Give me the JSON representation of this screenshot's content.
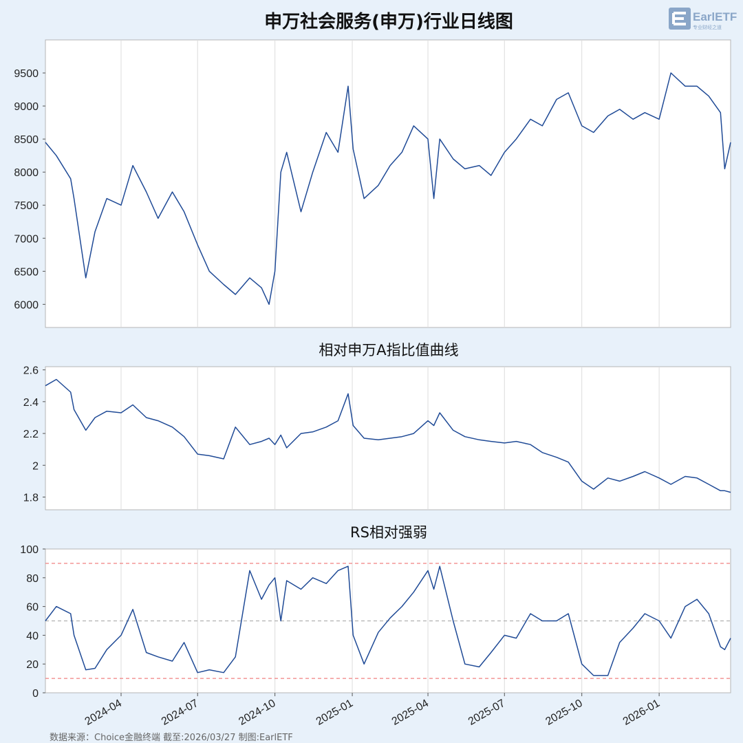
{
  "colors": {
    "background": "#e8f1fa",
    "plot_bg": "#ffffff",
    "line": "#1f4a96",
    "grid": "#dcdcdc",
    "ref_high_low": "#f08080",
    "ref_mid": "#b0b0b0",
    "axis_text": "#222222",
    "footer_text": "#666666"
  },
  "logo": {
    "text": "EarlETF",
    "subtext": "专业财经之道"
  },
  "footer": {
    "source": "数据来源：Choice金融终端 截至:2026/03/27 制图:EarlETF"
  },
  "x_ticks": [
    "2024-04",
    "2024-07",
    "2024-10",
    "2025-01",
    "2025-04",
    "2025-07",
    "2025-10",
    "2026-01"
  ],
  "chart_data": [
    {
      "type": "line",
      "title": "申万社会服务(申万)行业日线图",
      "yticks": [
        6000,
        6500,
        7000,
        7500,
        8000,
        8500,
        9000,
        9500
      ],
      "ylim": [
        5650,
        10000
      ],
      "grid": "vertical",
      "x": [
        "2024-01-02",
        "2024-01-15",
        "2024-02-01",
        "2024-02-05",
        "2024-02-19",
        "2024-03-01",
        "2024-03-15",
        "2024-04-01",
        "2024-04-15",
        "2024-05-01",
        "2024-05-15",
        "2024-06-01",
        "2024-06-15",
        "2024-07-01",
        "2024-07-15",
        "2024-08-01",
        "2024-08-15",
        "2024-09-01",
        "2024-09-15",
        "2024-09-24",
        "2024-10-01",
        "2024-10-08",
        "2024-10-15",
        "2024-11-01",
        "2024-11-15",
        "2024-12-01",
        "2024-12-15",
        "2024-12-27",
        "2025-01-02",
        "2025-01-15",
        "2025-02-01",
        "2025-02-15",
        "2025-03-01",
        "2025-03-15",
        "2025-04-01",
        "2025-04-08",
        "2025-04-15",
        "2025-05-01",
        "2025-05-15",
        "2025-06-01",
        "2025-06-15",
        "2025-07-01",
        "2025-07-15",
        "2025-08-01",
        "2025-08-15",
        "2025-09-01",
        "2025-09-15",
        "2025-10-01",
        "2025-10-15",
        "2025-11-01",
        "2025-11-15",
        "2025-12-01",
        "2025-12-15",
        "2026-01-01",
        "2026-01-15",
        "2026-02-01",
        "2026-02-15",
        "2026-03-01",
        "2026-03-15",
        "2026-03-20",
        "2026-03-27"
      ],
      "series": [
        {
          "values": [
            8450,
            8250,
            7900,
            7600,
            6400,
            7100,
            7600,
            7500,
            8100,
            7700,
            7300,
            7700,
            7400,
            6900,
            6500,
            6300,
            6150,
            6400,
            6250,
            6000,
            6500,
            8000,
            8300,
            7400,
            8000,
            8600,
            8300,
            9300,
            8350,
            7600,
            7800,
            8100,
            8300,
            8700,
            8500,
            7600,
            8500,
            8200,
            8050,
            8100,
            7950,
            8300,
            8500,
            8800,
            8700,
            9100,
            9200,
            8700,
            8600,
            8850,
            8950,
            8800,
            8900,
            8800,
            9500,
            9300,
            9300,
            9150,
            8900,
            8050,
            8450
          ]
        }
      ]
    },
    {
      "type": "line",
      "title": "相对申万A指比值曲线",
      "yticks": [
        1.8,
        2.0,
        2.2,
        2.4,
        2.6
      ],
      "ylim": [
        1.72,
        2.62
      ],
      "grid": "vertical",
      "x": [
        "2024-01-02",
        "2024-01-15",
        "2024-02-01",
        "2024-02-05",
        "2024-02-19",
        "2024-03-01",
        "2024-03-15",
        "2024-04-01",
        "2024-04-15",
        "2024-05-01",
        "2024-05-15",
        "2024-06-01",
        "2024-06-15",
        "2024-07-01",
        "2024-07-15",
        "2024-08-01",
        "2024-08-15",
        "2024-09-01",
        "2024-09-15",
        "2024-09-24",
        "2024-10-01",
        "2024-10-08",
        "2024-10-15",
        "2024-11-01",
        "2024-11-15",
        "2024-12-01",
        "2024-12-15",
        "2024-12-27",
        "2025-01-02",
        "2025-01-15",
        "2025-02-01",
        "2025-02-15",
        "2025-03-01",
        "2025-03-15",
        "2025-04-01",
        "2025-04-08",
        "2025-04-15",
        "2025-05-01",
        "2025-05-15",
        "2025-06-01",
        "2025-06-15",
        "2025-07-01",
        "2025-07-15",
        "2025-08-01",
        "2025-08-15",
        "2025-09-01",
        "2025-09-15",
        "2025-10-01",
        "2025-10-15",
        "2025-11-01",
        "2025-11-15",
        "2025-12-01",
        "2025-12-15",
        "2026-01-01",
        "2026-01-15",
        "2026-02-01",
        "2026-02-15",
        "2026-03-01",
        "2026-03-15",
        "2026-03-20",
        "2026-03-27"
      ],
      "series": [
        {
          "values": [
            2.5,
            2.54,
            2.46,
            2.35,
            2.22,
            2.3,
            2.34,
            2.33,
            2.38,
            2.3,
            2.28,
            2.24,
            2.18,
            2.07,
            2.06,
            2.04,
            2.24,
            2.13,
            2.15,
            2.17,
            2.13,
            2.19,
            2.11,
            2.2,
            2.21,
            2.24,
            2.28,
            2.45,
            2.25,
            2.17,
            2.16,
            2.17,
            2.18,
            2.2,
            2.28,
            2.25,
            2.33,
            2.22,
            2.18,
            2.16,
            2.15,
            2.14,
            2.15,
            2.13,
            2.08,
            2.05,
            2.02,
            1.9,
            1.85,
            1.92,
            1.9,
            1.93,
            1.96,
            1.92,
            1.88,
            1.93,
            1.92,
            1.88,
            1.84,
            1.84,
            1.83
          ]
        }
      ]
    },
    {
      "type": "line",
      "title": "RS相对强弱",
      "yticks": [
        0,
        20,
        40,
        60,
        80,
        100
      ],
      "ylim": [
        0,
        100
      ],
      "grid": "vertical",
      "reference_lines": [
        90,
        50,
        10
      ],
      "x": [
        "2024-01-02",
        "2024-01-15",
        "2024-02-01",
        "2024-02-05",
        "2024-02-19",
        "2024-03-01",
        "2024-03-15",
        "2024-04-01",
        "2024-04-15",
        "2024-05-01",
        "2024-05-15",
        "2024-06-01",
        "2024-06-15",
        "2024-07-01",
        "2024-07-15",
        "2024-08-01",
        "2024-08-15",
        "2024-09-01",
        "2024-09-15",
        "2024-09-24",
        "2024-10-01",
        "2024-10-08",
        "2024-10-15",
        "2024-11-01",
        "2024-11-15",
        "2024-12-01",
        "2024-12-15",
        "2024-12-27",
        "2025-01-02",
        "2025-01-15",
        "2025-02-01",
        "2025-02-15",
        "2025-03-01",
        "2025-03-15",
        "2025-04-01",
        "2025-04-08",
        "2025-04-15",
        "2025-05-01",
        "2025-05-15",
        "2025-06-01",
        "2025-06-15",
        "2025-07-01",
        "2025-07-15",
        "2025-08-01",
        "2025-08-15",
        "2025-09-01",
        "2025-09-15",
        "2025-10-01",
        "2025-10-15",
        "2025-11-01",
        "2025-11-15",
        "2025-12-01",
        "2025-12-15",
        "2026-01-01",
        "2026-01-15",
        "2026-02-01",
        "2026-02-15",
        "2026-03-01",
        "2026-03-15",
        "2026-03-20",
        "2026-03-27"
      ],
      "series": [
        {
          "values": [
            50,
            60,
            55,
            40,
            16,
            17,
            30,
            40,
            58,
            28,
            25,
            22,
            35,
            14,
            16,
            14,
            25,
            85,
            65,
            75,
            80,
            50,
            78,
            72,
            80,
            76,
            85,
            88,
            40,
            20,
            42,
            52,
            60,
            70,
            85,
            72,
            88,
            50,
            20,
            18,
            28,
            40,
            38,
            55,
            50,
            50,
            55,
            20,
            12,
            12,
            35,
            45,
            55,
            50,
            38,
            60,
            65,
            55,
            32,
            30,
            38
          ]
        }
      ]
    }
  ]
}
